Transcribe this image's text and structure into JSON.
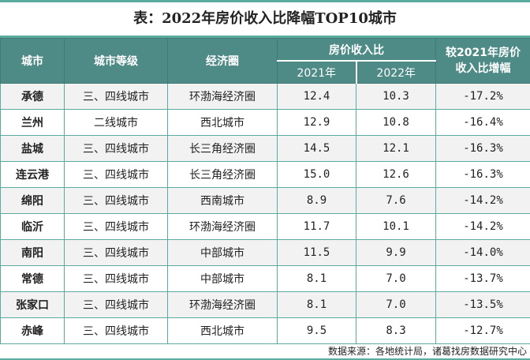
{
  "title": "表：2022年房价收入比降幅TOP10城市",
  "headers": {
    "city": "城市",
    "tier": "城市等级",
    "region": "经济圈",
    "ratio_group": "房价收入比",
    "y2021": "2021年",
    "y2022": "2022年",
    "change": "较2021年房价收入比增幅"
  },
  "rows": [
    {
      "city": "承德",
      "tier": "三、四线城市",
      "region": "环渤海经济圈",
      "y2021": "12.4",
      "y2022": "10.3",
      "change": "-17.2%"
    },
    {
      "city": "兰州",
      "tier": "二线城市",
      "region": "西北城市",
      "y2021": "12.9",
      "y2022": "10.8",
      "change": "-16.4%"
    },
    {
      "city": "盐城",
      "tier": "三、四线城市",
      "region": "长三角经济圈",
      "y2021": "14.5",
      "y2022": "12.1",
      "change": "-16.3%"
    },
    {
      "city": "连云港",
      "tier": "三、四线城市",
      "region": "长三角经济圈",
      "y2021": "15.0",
      "y2022": "12.6",
      "change": "-16.3%"
    },
    {
      "city": "绵阳",
      "tier": "三、四线城市",
      "region": "西南城市",
      "y2021": "8.9",
      "y2022": "7.6",
      "change": "-14.2%"
    },
    {
      "city": "临沂",
      "tier": "三、四线城市",
      "region": "环渤海经济圈",
      "y2021": "11.7",
      "y2022": "10.1",
      "change": "-14.2%"
    },
    {
      "city": "南阳",
      "tier": "三、四线城市",
      "region": "中部城市",
      "y2021": "11.5",
      "y2022": "9.9",
      "change": "-14.0%"
    },
    {
      "city": "常德",
      "tier": "三、四线城市",
      "region": "中部城市",
      "y2021": "8.1",
      "y2022": "7.0",
      "change": "-13.7%"
    },
    {
      "city": "张家口",
      "tier": "三、四线城市",
      "region": "环渤海经济圈",
      "y2021": "8.1",
      "y2022": "7.0",
      "change": "-13.5%"
    },
    {
      "city": "赤峰",
      "tier": "三、四线城市",
      "region": "西北城市",
      "y2021": "9.5",
      "y2022": "8.3",
      "change": "-12.7%"
    }
  ],
  "footer": "数据来源：各地统计局，诸葛找房数据研究中心",
  "colors": {
    "accent": "#5aaba0",
    "header_bg": "#4e8a86",
    "row_alt": "#f2f2f2"
  }
}
